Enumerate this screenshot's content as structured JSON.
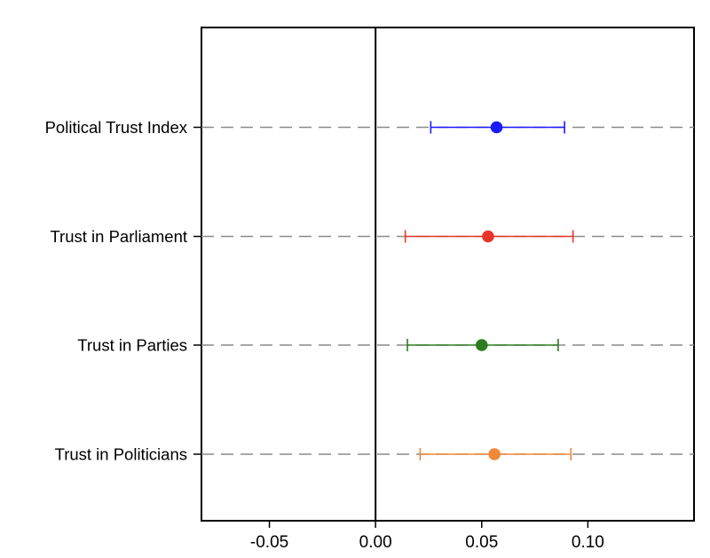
{
  "chart_data": {
    "type": "scatter",
    "subtype": "coefficient-plot",
    "title": "",
    "xlabel": "",
    "ylabel": "",
    "xlim": [
      -0.082,
      0.15
    ],
    "xticks": [
      -0.05,
      0.0,
      0.05,
      0.1
    ],
    "xtick_labels": [
      "-0.05",
      "0.00",
      "0.05",
      "0.10"
    ],
    "zero_reference_line": 0.0,
    "grid": "horizontal dashed lines at each category",
    "legend": "none",
    "categories": [
      "Political Trust Index",
      "Trust in Parliament",
      "Trust in Parties",
      "Trust in Politicians"
    ],
    "estimates": [
      {
        "label": "Political Trust Index",
        "estimate": 0.057,
        "ci_low": 0.026,
        "ci_high": 0.089,
        "color": "#1a1aff"
      },
      {
        "label": "Trust in Parliament",
        "estimate": 0.053,
        "ci_low": 0.014,
        "ci_high": 0.093,
        "color": "#e8352a"
      },
      {
        "label": "Trust in Parties",
        "estimate": 0.05,
        "ci_low": 0.015,
        "ci_high": 0.086,
        "color": "#2e7d20"
      },
      {
        "label": "Trust in Politicians",
        "estimate": 0.056,
        "ci_low": 0.021,
        "ci_high": 0.092,
        "color": "#f08838"
      }
    ]
  }
}
